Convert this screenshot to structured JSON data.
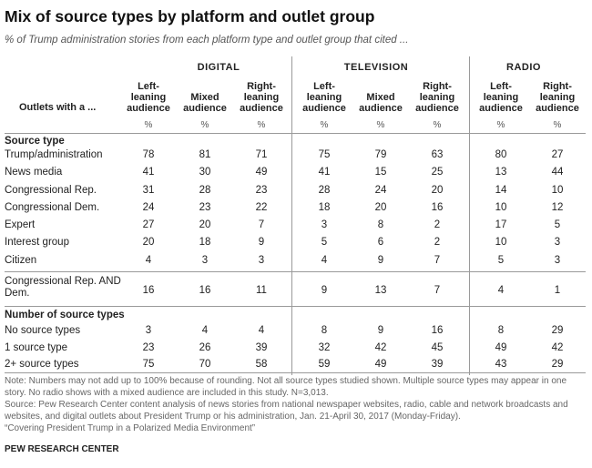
{
  "title": "Mix of source types by platform and outlet group",
  "subtitle": "% of Trump administration stories from each platform type and outlet group that cited ...",
  "groups": [
    "DIGITAL",
    "TELEVISION",
    "RADIO"
  ],
  "outlets_label": "Outlets with a ...",
  "columns": [
    {
      "line1": "Left-",
      "line2": "leaning",
      "line3": "audience"
    },
    {
      "line1": "Mixed",
      "line2": "audience",
      "line3": ""
    },
    {
      "line1": "Right-",
      "line2": "leaning",
      "line3": "audience"
    },
    {
      "line1": "Left-",
      "line2": "leaning",
      "line3": "audience"
    },
    {
      "line1": "Mixed",
      "line2": "audience",
      "line3": ""
    },
    {
      "line1": "Right-",
      "line2": "leaning",
      "line3": "audience"
    },
    {
      "line1": "Left-",
      "line2": "leaning",
      "line3": "audience"
    },
    {
      "line1": "Right-",
      "line2": "leaning",
      "line3": "audience"
    }
  ],
  "pct_symbol": "%",
  "section1": "Source type",
  "section2": "Number of source types",
  "rows_source": [
    {
      "label": "Trump/administration",
      "values": [
        "78",
        "81",
        "71",
        "75",
        "79",
        "63",
        "80",
        "27"
      ]
    },
    {
      "label": "News media",
      "values": [
        "41",
        "30",
        "49",
        "41",
        "15",
        "25",
        "13",
        "44"
      ]
    },
    {
      "label": "Congressional Rep.",
      "values": [
        "31",
        "28",
        "23",
        "28",
        "24",
        "20",
        "14",
        "10"
      ]
    },
    {
      "label": "Congressional Dem.",
      "values": [
        "24",
        "23",
        "22",
        "18",
        "20",
        "16",
        "10",
        "12"
      ]
    },
    {
      "label": "Expert",
      "values": [
        "27",
        "20",
        "7",
        "3",
        "8",
        "2",
        "17",
        "5"
      ]
    },
    {
      "label": "Interest group",
      "values": [
        "20",
        "18",
        "9",
        "5",
        "6",
        "2",
        "10",
        "3"
      ]
    },
    {
      "label": "Citizen",
      "values": [
        "4",
        "3",
        "3",
        "4",
        "9",
        "7",
        "5",
        "3"
      ]
    }
  ],
  "row_combined": {
    "label1": "Congressional Rep. AND",
    "label2": "Dem.",
    "values": [
      "16",
      "16",
      "11",
      "9",
      "13",
      "7",
      "4",
      "1"
    ]
  },
  "rows_count": [
    {
      "label": "No source types",
      "values": [
        "3",
        "4",
        "4",
        "8",
        "9",
        "16",
        "8",
        "29"
      ]
    },
    {
      "label": "1 source type",
      "values": [
        "23",
        "26",
        "39",
        "32",
        "42",
        "45",
        "49",
        "42"
      ]
    },
    {
      "label": "2+ source types",
      "values": [
        "75",
        "70",
        "58",
        "59",
        "49",
        "39",
        "43",
        "29"
      ]
    }
  ],
  "notes": {
    "n1": "Note: Numbers may not add up to 100% because of rounding. Not all source types studied shown. Multiple source types may appear in one",
    "n2": "story. No radio shows with a mixed audience are included in this study. N=3,013.",
    "n3": "Source: Pew Research Center content analysis of news stories from national newspaper websites, radio, cable and network broadcasts and",
    "n4": "websites, and digital outlets about President Trump or his administration, Jan. 21-April 30, 2017 (Monday-Friday).",
    "n5": "“Covering President Trump in a Polarized Media Environment”"
  },
  "footer": "PEW RESEARCH CENTER"
}
